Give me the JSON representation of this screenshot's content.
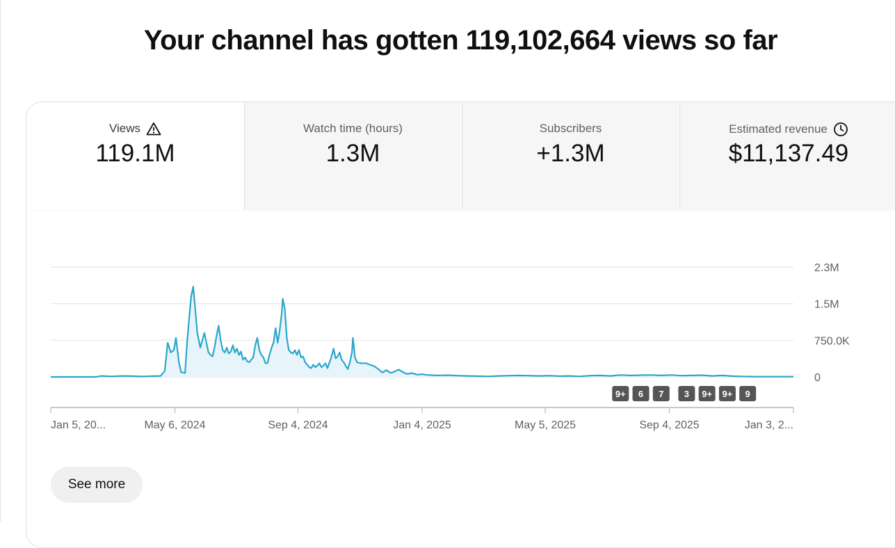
{
  "headline": "Your channel has gotten 119,102,664 views so far",
  "metrics": [
    {
      "label": "Views",
      "value": "119.1M",
      "icon": "warning-icon"
    },
    {
      "label": "Watch time (hours)",
      "value": "1.3M"
    },
    {
      "label": "Subscribers",
      "value": "+1.3M"
    },
    {
      "label": "Estimated revenue",
      "value": "$11,137.49",
      "icon": "clock-icon"
    }
  ],
  "see_more_label": "See more",
  "colors": {
    "line": "#2ba6cb",
    "fill": "#e7f5fa",
    "grid": "#e5e5e5",
    "axis": "#c8c8c8",
    "badge": "#555555"
  },
  "chart_data": {
    "type": "area",
    "series": [
      {
        "values": [
          [
            0,
            0
          ],
          [
            40,
            0
          ],
          [
            45,
            1000
          ],
          [
            50,
            20000
          ],
          [
            60,
            10000
          ],
          [
            70,
            20000
          ],
          [
            80,
            15000
          ],
          [
            90,
            8000
          ],
          [
            100,
            15000
          ],
          [
            108,
            20000
          ],
          [
            112,
            120000
          ],
          [
            115,
            700000
          ],
          [
            118,
            500000
          ],
          [
            121,
            550000
          ],
          [
            123,
            800000
          ],
          [
            126,
            300000
          ],
          [
            128,
            100000
          ],
          [
            132,
            80000
          ],
          [
            134,
            700000
          ],
          [
            136,
            1200000
          ],
          [
            138,
            1650000
          ],
          [
            140,
            1850000
          ],
          [
            142,
            1400000
          ],
          [
            144,
            900000
          ],
          [
            147,
            600000
          ],
          [
            149,
            750000
          ],
          [
            151,
            900000
          ],
          [
            153,
            700000
          ],
          [
            155,
            500000
          ],
          [
            157,
            450000
          ],
          [
            159,
            420000
          ],
          [
            161,
            600000
          ],
          [
            163,
            850000
          ],
          [
            165,
            1050000
          ],
          [
            167,
            750000
          ],
          [
            169,
            550000
          ],
          [
            171,
            500000
          ],
          [
            173,
            600000
          ],
          [
            175,
            480000
          ],
          [
            177,
            520000
          ],
          [
            179,
            650000
          ],
          [
            181,
            500000
          ],
          [
            183,
            580000
          ],
          [
            185,
            450000
          ],
          [
            187,
            520000
          ],
          [
            189,
            350000
          ],
          [
            191,
            400000
          ],
          [
            193,
            320000
          ],
          [
            195,
            300000
          ],
          [
            197,
            350000
          ],
          [
            199,
            400000
          ],
          [
            201,
            650000
          ],
          [
            203,
            800000
          ],
          [
            205,
            550000
          ],
          [
            207,
            450000
          ],
          [
            209,
            400000
          ],
          [
            211,
            280000
          ],
          [
            213,
            280000
          ],
          [
            215,
            450000
          ],
          [
            217,
            600000
          ],
          [
            219,
            700000
          ],
          [
            221,
            1000000
          ],
          [
            223,
            700000
          ],
          [
            225,
            950000
          ],
          [
            227,
            1300000
          ],
          [
            228,
            1600000
          ],
          [
            230,
            1400000
          ],
          [
            232,
            800000
          ],
          [
            234,
            550000
          ],
          [
            236,
            500000
          ],
          [
            238,
            480000
          ],
          [
            240,
            550000
          ],
          [
            242,
            450000
          ],
          [
            244,
            550000
          ],
          [
            246,
            400000
          ],
          [
            248,
            420000
          ],
          [
            250,
            300000
          ],
          [
            252,
            250000
          ],
          [
            254,
            200000
          ],
          [
            256,
            180000
          ],
          [
            258,
            250000
          ],
          [
            260,
            200000
          ],
          [
            262,
            230000
          ],
          [
            264,
            280000
          ],
          [
            266,
            200000
          ],
          [
            268,
            230000
          ],
          [
            270,
            280000
          ],
          [
            272,
            180000
          ],
          [
            274,
            300000
          ],
          [
            276,
            420000
          ],
          [
            278,
            580000
          ],
          [
            280,
            380000
          ],
          [
            282,
            420000
          ],
          [
            284,
            500000
          ],
          [
            286,
            350000
          ],
          [
            288,
            300000
          ],
          [
            290,
            220000
          ],
          [
            292,
            160000
          ],
          [
            294,
            300000
          ],
          [
            296,
            500000
          ],
          [
            297,
            800000
          ],
          [
            299,
            400000
          ],
          [
            301,
            300000
          ],
          [
            305,
            280000
          ],
          [
            310,
            280000
          ],
          [
            315,
            240000
          ],
          [
            318,
            220000
          ],
          [
            322,
            160000
          ],
          [
            326,
            90000
          ],
          [
            330,
            140000
          ],
          [
            334,
            80000
          ],
          [
            338,
            110000
          ],
          [
            342,
            150000
          ],
          [
            346,
            100000
          ],
          [
            350,
            60000
          ],
          [
            355,
            80000
          ],
          [
            360,
            45000
          ],
          [
            365,
            55000
          ],
          [
            370,
            40000
          ],
          [
            380,
            30000
          ],
          [
            390,
            35000
          ],
          [
            400,
            25000
          ],
          [
            410,
            20000
          ],
          [
            420,
            15000
          ],
          [
            430,
            10000
          ],
          [
            440,
            20000
          ],
          [
            450,
            25000
          ],
          [
            460,
            30000
          ],
          [
            470,
            25000
          ],
          [
            480,
            20000
          ],
          [
            490,
            25000
          ],
          [
            500,
            15000
          ],
          [
            510,
            20000
          ],
          [
            520,
            10000
          ],
          [
            530,
            25000
          ],
          [
            540,
            30000
          ],
          [
            550,
            20000
          ],
          [
            560,
            40000
          ],
          [
            570,
            30000
          ],
          [
            580,
            35000
          ],
          [
            590,
            40000
          ],
          [
            600,
            30000
          ],
          [
            610,
            40000
          ],
          [
            620,
            25000
          ],
          [
            630,
            30000
          ],
          [
            640,
            35000
          ],
          [
            650,
            20000
          ],
          [
            660,
            30000
          ],
          [
            670,
            15000
          ],
          [
            680,
            10000
          ],
          [
            690,
            5000
          ],
          [
            700,
            5000
          ],
          [
            730,
            5000
          ]
        ]
      }
    ],
    "x_unit": "days since Jan 5, 2024",
    "x_tick_labels": [
      "Jan 5, 20...",
      "May 6, 2024",
      "Sep 4, 2024",
      "Jan 4, 2025",
      "May 5, 2025",
      "Sep 4, 2025",
      "Jan 3, 2..."
    ],
    "x_tick_days": [
      0,
      122,
      243,
      365,
      486,
      608,
      730
    ],
    "y_tick_labels": [
      "2.3M",
      "1.5M",
      "750.0K",
      "0"
    ],
    "y_tick_values": [
      2250000,
      1500000,
      750000,
      0
    ],
    "ylim": [
      0,
      2250000
    ],
    "xlim": [
      0,
      730
    ],
    "grid": true,
    "annotations": [
      {
        "label": "9+",
        "day": 560
      },
      {
        "label": "6",
        "day": 580
      },
      {
        "label": "7",
        "day": 600
      },
      {
        "label": "3",
        "day": 625
      },
      {
        "label": "9+",
        "day": 645
      },
      {
        "label": "9+",
        "day": 665
      },
      {
        "label": "9",
        "day": 685
      }
    ]
  }
}
